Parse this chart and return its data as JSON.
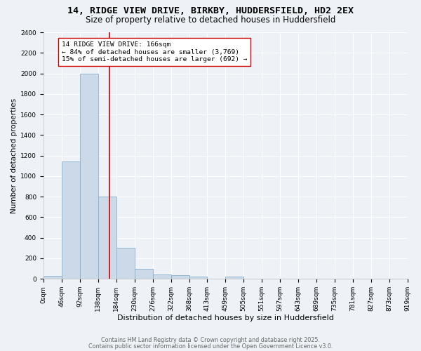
{
  "title1": "14, RIDGE VIEW DRIVE, BIRKBY, HUDDERSFIELD, HD2 2EX",
  "title2": "Size of property relative to detached houses in Huddersfield",
  "xlabel": "Distribution of detached houses by size in Huddersfield",
  "ylabel": "Number of detached properties",
  "bar_edges": [
    0,
    46,
    92,
    138,
    184,
    230,
    276,
    322,
    368,
    413,
    459,
    505,
    551,
    597,
    643,
    689,
    735,
    781,
    827,
    873,
    919
  ],
  "bar_heights": [
    30,
    1140,
    2000,
    800,
    300,
    100,
    45,
    38,
    25,
    0,
    20,
    0,
    0,
    0,
    0,
    0,
    0,
    0,
    0,
    0
  ],
  "bar_color": "#ccd9e8",
  "bar_edge_color": "#8ab0cc",
  "background_color": "#eef2f7",
  "grid_color": "#ffffff",
  "vline_x": 166,
  "vline_color": "#cc0000",
  "annotation_text": "14 RIDGE VIEW DRIVE: 166sqm\n← 84% of detached houses are smaller (3,769)\n15% of semi-detached houses are larger (692) →",
  "annotation_box_color": "#ffffff",
  "annotation_border_color": "#cc0000",
  "ylim": [
    0,
    2400
  ],
  "yticks": [
    0,
    200,
    400,
    600,
    800,
    1000,
    1200,
    1400,
    1600,
    1800,
    2000,
    2200,
    2400
  ],
  "tick_labels": [
    "0sqm",
    "46sqm",
    "92sqm",
    "138sqm",
    "184sqm",
    "230sqm",
    "276sqm",
    "322sqm",
    "368sqm",
    "413sqm",
    "459sqm",
    "505sqm",
    "551sqm",
    "597sqm",
    "643sqm",
    "689sqm",
    "735sqm",
    "781sqm",
    "827sqm",
    "873sqm",
    "919sqm"
  ],
  "footnote1": "Contains HM Land Registry data © Crown copyright and database right 2025.",
  "footnote2": "Contains public sector information licensed under the Open Government Licence v3.0.",
  "title1_fontsize": 9.5,
  "title2_fontsize": 8.5,
  "xlabel_fontsize": 8,
  "ylabel_fontsize": 7.5,
  "tick_fontsize": 6.5,
  "footnote_fontsize": 5.8,
  "annot_fontsize": 6.8
}
